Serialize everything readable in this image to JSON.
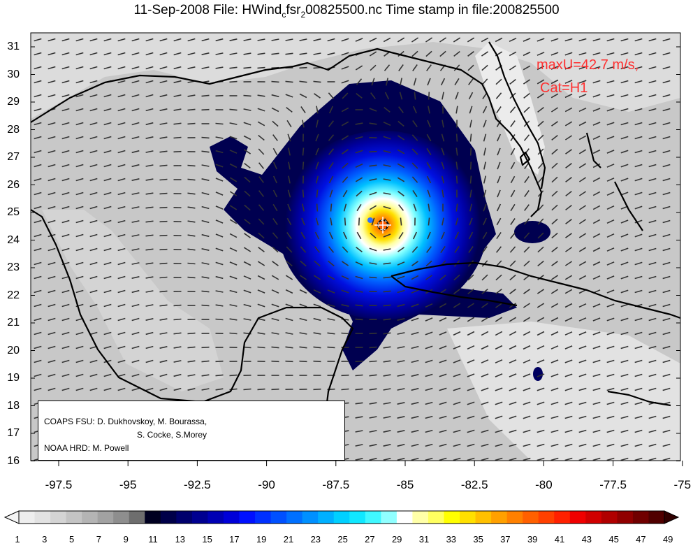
{
  "title": {
    "prefix": "11-Sep-2008 File: HWind",
    "sub1": "c",
    "mid": "fsr",
    "sub2": "2",
    "suffix": "00825500.nc Time stamp in file:200825500"
  },
  "annotations": {
    "max_wind": "maxU=42.7 m/s,",
    "category": "Cat=H1",
    "color": "#ff3030"
  },
  "credits": {
    "line1": "COAPS FSU: D. Dukhovskoy, M. Bourassa,",
    "line2": "S. Cocke, S.Morey",
    "line3": "NOAA HRD:  M. Powell"
  },
  "axes": {
    "y_ticks": [
      "31",
      "30",
      "29",
      "28",
      "27",
      "26",
      "25",
      "24",
      "23",
      "22",
      "21",
      "20",
      "19",
      "18",
      "17",
      "16"
    ],
    "x_ticks": [
      "-97.5",
      "-95",
      "-92.5",
      "-90",
      "-87.5",
      "-85",
      "-82.5",
      "-80",
      "-77.5",
      "-75"
    ]
  },
  "colorbar": {
    "labels": [
      "1",
      "3",
      "5",
      "7",
      "9",
      "11",
      "13",
      "15",
      "17",
      "19",
      "21",
      "23",
      "25",
      "27",
      "29",
      "31",
      "33",
      "35",
      "37",
      "39",
      "41",
      "43",
      "45",
      "47",
      "49"
    ],
    "colors": [
      "#eeeeee",
      "#e2e2e2",
      "#d4d4d4",
      "#c4c4c4",
      "#b4b4b4",
      "#a2a2a2",
      "#8e8e8e",
      "#6e6e6e",
      "#000020",
      "#000048",
      "#00006c",
      "#000090",
      "#0000b4",
      "#0000d8",
      "#0010ff",
      "#0030ff",
      "#0050ff",
      "#0070ff",
      "#0090ff",
      "#00b0ff",
      "#00d0ff",
      "#10e8ff",
      "#40f8ff",
      "#90ffff",
      "#ffffff",
      "#ffffa8",
      "#ffff60",
      "#ffff00",
      "#ffe000",
      "#ffc000",
      "#ffa000",
      "#ff8000",
      "#ff6000",
      "#ff4000",
      "#ff2000",
      "#f00000",
      "#d00000",
      "#b00000",
      "#900000",
      "#700000",
      "#500000"
    ]
  },
  "storm_center": {
    "lon": -85.7,
    "lat": 24.6
  }
}
